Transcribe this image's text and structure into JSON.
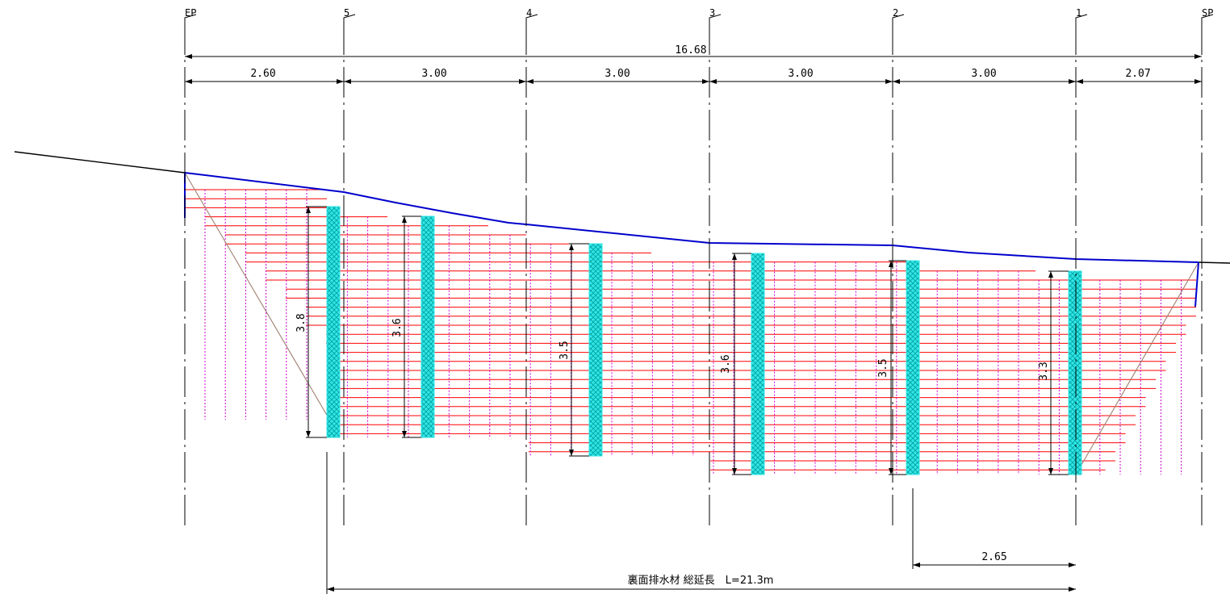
{
  "stations": [
    {
      "label": "EP",
      "x": 0
    },
    {
      "label": "5",
      "x": 2.6
    },
    {
      "label": "4",
      "x": 5.6
    },
    {
      "label": "3",
      "x": 8.6
    },
    {
      "label": "2",
      "x": 11.6
    },
    {
      "label": "1",
      "x": 14.6
    },
    {
      "label": "SP",
      "x": 16.68
    }
  ],
  "total_span": {
    "label": "16.68",
    "value": 16.68
  },
  "spans": [
    {
      "label": "2.60",
      "value": 2.6
    },
    {
      "label": "3.00",
      "value": 3.0
    },
    {
      "label": "3.00",
      "value": 3.0
    },
    {
      "label": "3.00",
      "value": 3.0
    },
    {
      "label": "3.00",
      "value": 3.0
    },
    {
      "label": "2.07",
      "value": 2.07
    }
  ],
  "drains": [
    {
      "height_label": "3.8",
      "height": 3.8,
      "x": 2.45
    },
    {
      "height_label": "3.6",
      "height": 3.6,
      "x": 3.98
    },
    {
      "height_label": "3.5",
      "height": 3.5,
      "x": 6.72
    },
    {
      "height_label": "3.6",
      "height": 3.6,
      "x": 9.38
    },
    {
      "height_label": "3.5",
      "height": 3.5,
      "x": 11.95
    },
    {
      "height_label": "3.3",
      "height": 3.3,
      "x": 14.6
    }
  ],
  "spacing_dim": {
    "label": "2.65",
    "value": 2.65
  },
  "total_length": {
    "label": "裏面排水材 総延長　L=21.3m",
    "value": 21.3
  },
  "colors": {
    "ground": "#0000cc",
    "terrain": "#000000",
    "grid_h": "#ff0000",
    "grid_v": "#cc00cc",
    "drain": "#33e6e6",
    "drain_hatch": "#00a0a0",
    "slope": "#a08070"
  }
}
